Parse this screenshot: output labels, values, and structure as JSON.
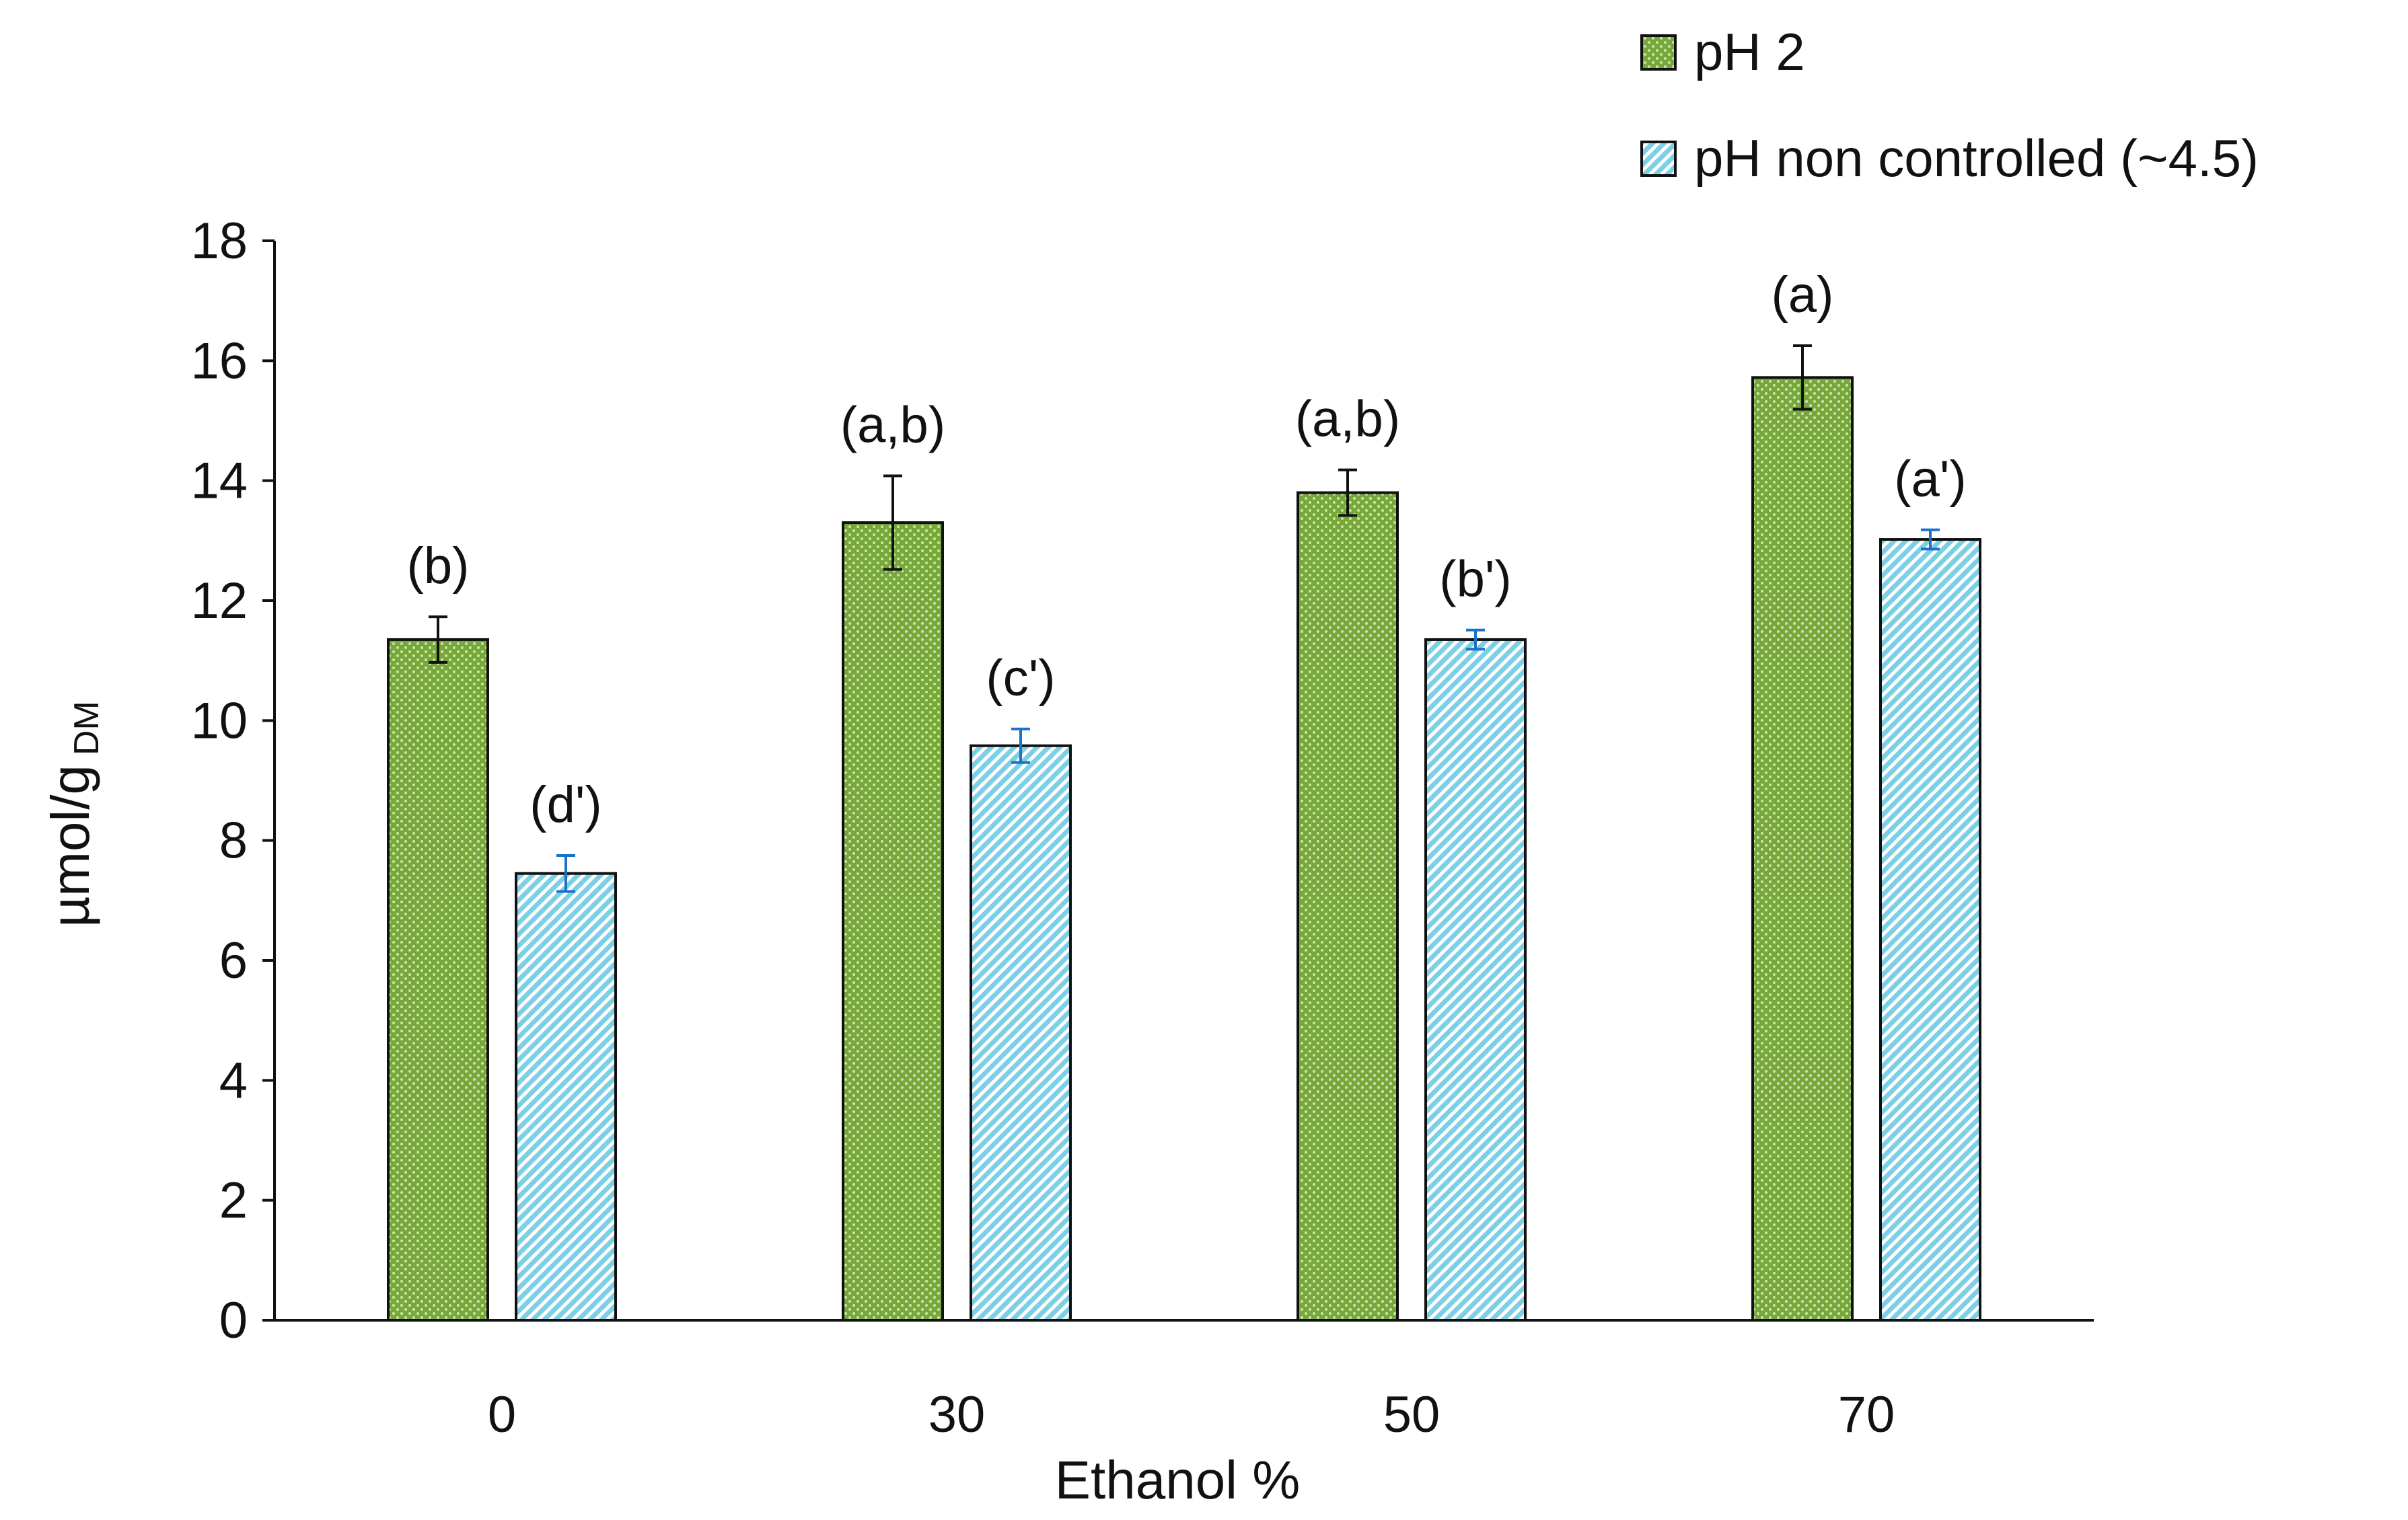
{
  "chart_data": {
    "type": "bar",
    "title": "",
    "xlabel": "Ethanol %",
    "ylabel": "µmol/g",
    "ylabel_subscript": "DM",
    "categories": [
      "0",
      "30",
      "50",
      "70"
    ],
    "ylim": [
      0,
      18
    ],
    "yticks": [
      0,
      2,
      4,
      6,
      8,
      10,
      12,
      14,
      16,
      18
    ],
    "legend_position": "top-right",
    "grid": false,
    "series": [
      {
        "name": "pH 2",
        "color": "#77a83a",
        "pattern": "dotted",
        "error_bar_color": "#111111",
        "values": [
          11.35,
          13.3,
          13.8,
          15.72
        ],
        "errors": [
          0.38,
          0.78,
          0.38,
          0.53
        ],
        "annotations": [
          "(b)",
          "(a,b)",
          "(a,b)",
          "(a)"
        ]
      },
      {
        "name": "pH non controlled (~4.5)",
        "color": "#7dcfe6",
        "pattern": "diagonal",
        "error_bar_color": "#1a73c7",
        "values": [
          7.45,
          9.58,
          11.35,
          13.02
        ],
        "errors": [
          0.3,
          0.28,
          0.16,
          0.16
        ],
        "annotations": [
          "(d')",
          "(c')",
          "(b')",
          "(a')"
        ]
      }
    ]
  }
}
